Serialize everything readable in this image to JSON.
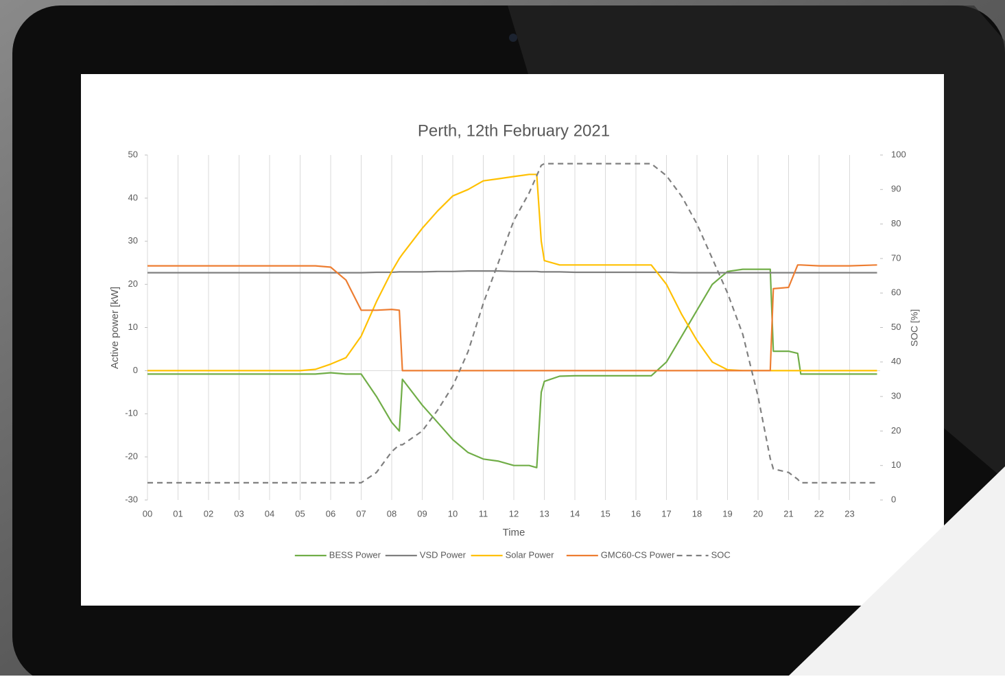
{
  "chart_data": {
    "type": "line",
    "title": "Perth, 12th February 2021",
    "xlabel": "Time",
    "ylabel": "Active power [kW]",
    "y2label": "SOC [%]",
    "x": [
      0,
      1,
      2,
      3,
      4,
      5,
      5.5,
      6,
      6.5,
      7,
      7.5,
      8,
      8.25,
      8.35,
      9,
      9.5,
      10,
      10.5,
      11,
      11.5,
      12,
      12.5,
      12.75,
      12.9,
      13,
      13.5,
      14,
      15,
      16,
      16.5,
      17,
      17.5,
      18,
      18.5,
      19,
      19.5,
      20,
      20.4,
      20.5,
      21,
      21.3,
      21.4,
      22,
      23,
      23.9
    ],
    "xlim": [
      0,
      24
    ],
    "xticks": [
      {
        "value": 0,
        "label": "00"
      },
      {
        "value": 1,
        "label": "01"
      },
      {
        "value": 2,
        "label": "02"
      },
      {
        "value": 3,
        "label": "03"
      },
      {
        "value": 4,
        "label": "04"
      },
      {
        "value": 5,
        "label": "05"
      },
      {
        "value": 6,
        "label": "06"
      },
      {
        "value": 7,
        "label": "07"
      },
      {
        "value": 8,
        "label": "08"
      },
      {
        "value": 9,
        "label": "09"
      },
      10,
      11,
      12,
      13,
      14,
      15,
      16,
      17,
      18,
      19,
      20,
      21,
      22,
      23
    ],
    "ylim": [
      -30,
      50
    ],
    "yticks": [
      -30,
      -20,
      -10,
      0,
      10,
      20,
      30,
      40,
      50
    ],
    "y2lim": [
      0,
      100
    ],
    "y2ticks": [
      0,
      10,
      20,
      30,
      40,
      50,
      60,
      70,
      80,
      90,
      100
    ],
    "grid": true,
    "legend": "bottom",
    "series": [
      {
        "name": "BESS Power",
        "color": "#70ad47",
        "values": [
          -0.8,
          -0.8,
          -0.8,
          -0.8,
          -0.8,
          -0.8,
          -0.8,
          -0.5,
          -0.8,
          -0.8,
          -6,
          -12,
          -14,
          -2,
          -8,
          -12,
          -16,
          -19,
          -20.5,
          -21,
          -22,
          -22,
          -22.5,
          -5,
          -2.5,
          -1.3,
          -1.2,
          -1.2,
          -1.2,
          -1.2,
          2,
          8,
          14,
          20,
          23,
          23.5,
          23.5,
          23.5,
          4.5,
          4.5,
          4,
          -0.8,
          -0.8,
          -0.8,
          -0.8
        ]
      },
      {
        "name": "VSD Power",
        "color": "#7f7f7f",
        "values": [
          22.7,
          22.7,
          22.7,
          22.7,
          22.7,
          22.7,
          22.7,
          22.7,
          22.7,
          22.7,
          22.8,
          22.8,
          22.9,
          22.9,
          22.9,
          23,
          23,
          23.1,
          23.1,
          23.1,
          23,
          23,
          23,
          22.9,
          22.9,
          22.9,
          22.8,
          22.8,
          22.8,
          22.8,
          22.8,
          22.7,
          22.7,
          22.7,
          22.7,
          22.7,
          22.7,
          22.7,
          22.7,
          22.7,
          22.7,
          22.7,
          22.7,
          22.7,
          22.7
        ]
      },
      {
        "name": "Solar Power",
        "color": "#ffc000",
        "values": [
          0,
          0,
          0,
          0,
          0,
          0,
          0.3,
          1.5,
          3,
          8,
          16,
          23,
          26,
          27,
          33,
          37,
          40.5,
          42,
          44,
          44.5,
          45,
          45.5,
          45.5,
          30,
          25.5,
          24.5,
          24.5,
          24.5,
          24.5,
          24.5,
          20,
          13,
          7,
          2,
          0.2,
          0,
          0,
          0,
          0,
          0,
          0,
          0,
          0,
          0,
          0
        ]
      },
      {
        "name": "GMC60-CS Power",
        "color": "#ed7d31",
        "values": [
          24.3,
          24.3,
          24.3,
          24.3,
          24.3,
          24.3,
          24.3,
          24,
          21,
          14,
          14,
          14.2,
          14,
          0,
          0,
          0,
          0,
          0,
          0,
          0,
          0,
          0,
          0,
          0,
          0,
          0,
          0,
          0,
          0,
          0,
          0,
          0,
          0,
          0,
          0,
          0,
          0,
          0,
          19,
          19.3,
          24.5,
          24.5,
          24.3,
          24.3,
          24.5
        ]
      },
      {
        "name": "SOC",
        "color": "#7f7f7f",
        "dashed": true,
        "axis": "y2",
        "values": [
          5,
          5,
          5,
          5,
          5,
          5,
          5,
          5,
          5,
          5,
          8,
          14,
          16,
          16,
          20,
          26,
          33,
          43,
          57,
          69,
          81,
          89,
          94,
          97,
          97.5,
          97.5,
          97.5,
          97.5,
          97.5,
          97.5,
          94,
          88,
          80,
          70,
          60,
          48,
          30,
          12,
          9,
          8,
          6,
          5,
          5,
          5,
          5
        ]
      }
    ]
  }
}
